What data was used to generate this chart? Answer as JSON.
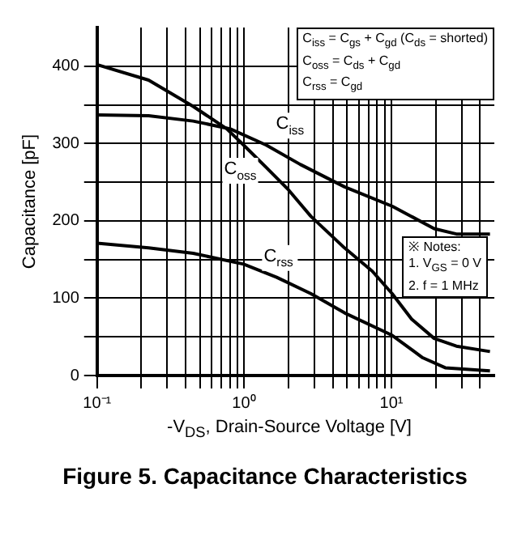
{
  "chart_data": {
    "type": "line",
    "title": "Figure 5. Capacitance Characteristics",
    "xlabel": "-V$_{DS}$, Drain-Source Voltage [V]",
    "ylabel": "Capacitance [pF]",
    "log": "x",
    "xlim": [
      0.1,
      50
    ],
    "ylim": [
      0,
      450
    ],
    "xticks": [
      {
        "value": 0.1,
        "label": "10⁻¹"
      },
      {
        "value": 0.2,
        "label": null
      },
      {
        "value": 0.3,
        "label": null
      },
      {
        "value": 0.4,
        "label": null
      },
      {
        "value": 0.5,
        "label": null
      },
      {
        "value": 0.6,
        "label": null
      },
      {
        "value": 0.7,
        "label": null
      },
      {
        "value": 0.8,
        "label": null
      },
      {
        "value": 0.9,
        "label": null
      },
      {
        "value": 1,
        "label": "10⁰"
      },
      {
        "value": 2,
        "label": null
      },
      {
        "value": 3,
        "label": null
      },
      {
        "value": 4,
        "label": null
      },
      {
        "value": 5,
        "label": null
      },
      {
        "value": 6,
        "label": null
      },
      {
        "value": 7,
        "label": null
      },
      {
        "value": 8,
        "label": null
      },
      {
        "value": 9,
        "label": null
      },
      {
        "value": 10,
        "label": "10¹"
      },
      {
        "value": 20,
        "label": null
      },
      {
        "value": 30,
        "label": null
      },
      {
        "value": 40,
        "label": null
      }
    ],
    "yticks": [
      0,
      {
        "value": 50,
        "label": null
      },
      100,
      {
        "value": 150,
        "label": null
      },
      200,
      {
        "value": 250,
        "label": null
      },
      300,
      {
        "value": 350,
        "label": null
      },
      400
    ],
    "grid": true,
    "legend": false,
    "marker": "none",
    "line_style": "solid",
    "series": [
      {
        "name": "C$_{iss}$",
        "color": "#000000",
        "x": [
          0.1,
          0.224,
          0.45,
          0.8,
          1.41,
          2.4,
          4.8,
          10.1,
          19.5,
          27.6,
          46.7
        ],
        "values": [
          337,
          336,
          329,
          319,
          298,
          273,
          244,
          219,
          190,
          183,
          183
        ]
      },
      {
        "name": "C$_{oss}$",
        "color": "#000000",
        "x": [
          0.1,
          0.224,
          0.45,
          0.76,
          0.99,
          1.41,
          2.0,
          2.83,
          4.8,
          7.4,
          10.1,
          13.7,
          19.5,
          27.6,
          46.7
        ],
        "values": [
          402,
          382,
          348,
          319,
          298,
          269,
          240,
          206,
          165,
          135,
          106,
          73,
          48,
          38,
          31
        ]
      },
      {
        "name": "C$_{rss}$",
        "color": "#000000",
        "x": [
          0.1,
          0.224,
          0.45,
          0.99,
          1.66,
          2.83,
          4.8,
          10.1,
          16.3,
          23.2,
          46.7
        ],
        "values": [
          171,
          165,
          158,
          144,
          127,
          106,
          81,
          52,
          23,
          10,
          6
        ]
      }
    ],
    "annotations": [
      "C$_{iss}$ = C$_{gs}$ + C$_{gd}$ (C$_{ds}$ = shorted)",
      "C$_{oss}$ = C$_{ds}$ + C$_{gd}$",
      "C$_{rss}$ = C$_{gd}$",
      "※ Notes:",
      "1. V$_{GS}$ = 0 V",
      "2. f = 1 MHz"
    ]
  }
}
